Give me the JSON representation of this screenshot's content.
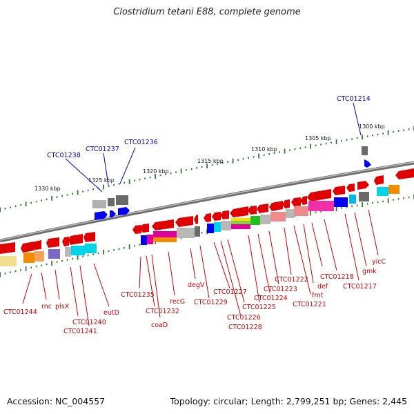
{
  "title": "Clostridium tetani E88, complete genome",
  "footer": {
    "accession": "Accession: NC_004557",
    "topology": "Topology: circular; Length: 2,799,251 bp; Genes: 2,445"
  },
  "scale_labels": [
    "1330 kbp",
    "1325 kbp",
    "1320 kbp",
    "1315 kbp",
    "1310 kbp",
    "1305 kbp",
    "1300 kbp"
  ],
  "blue_labels": [
    "CTC01238",
    "CTC01237",
    "CTC01236",
    "CTC01214"
  ],
  "red_labels": [
    "CTC01244",
    "rnc",
    "plsX",
    "CTC01240",
    "CTC01241",
    "eutD",
    "CTC01235",
    "coaD",
    "CTC01232",
    "recG",
    "degV",
    "CTC01229",
    "CTC01228",
    "CTC01227",
    "CTC01226",
    "CTC01225",
    "CTC01224",
    "CTC01223",
    "CTC01222",
    "fmt",
    "CTC01221",
    "def",
    "CTC01218",
    "gmk",
    "CTC01217",
    "yicC"
  ],
  "colors": {
    "backbone": "#808080",
    "scale_ticks": "#2e7d32",
    "gene_forward": "#e00000",
    "gene_reverse": "#0000ee",
    "label_red": "#cc0000",
    "label_blue": "#0000bb"
  }
}
